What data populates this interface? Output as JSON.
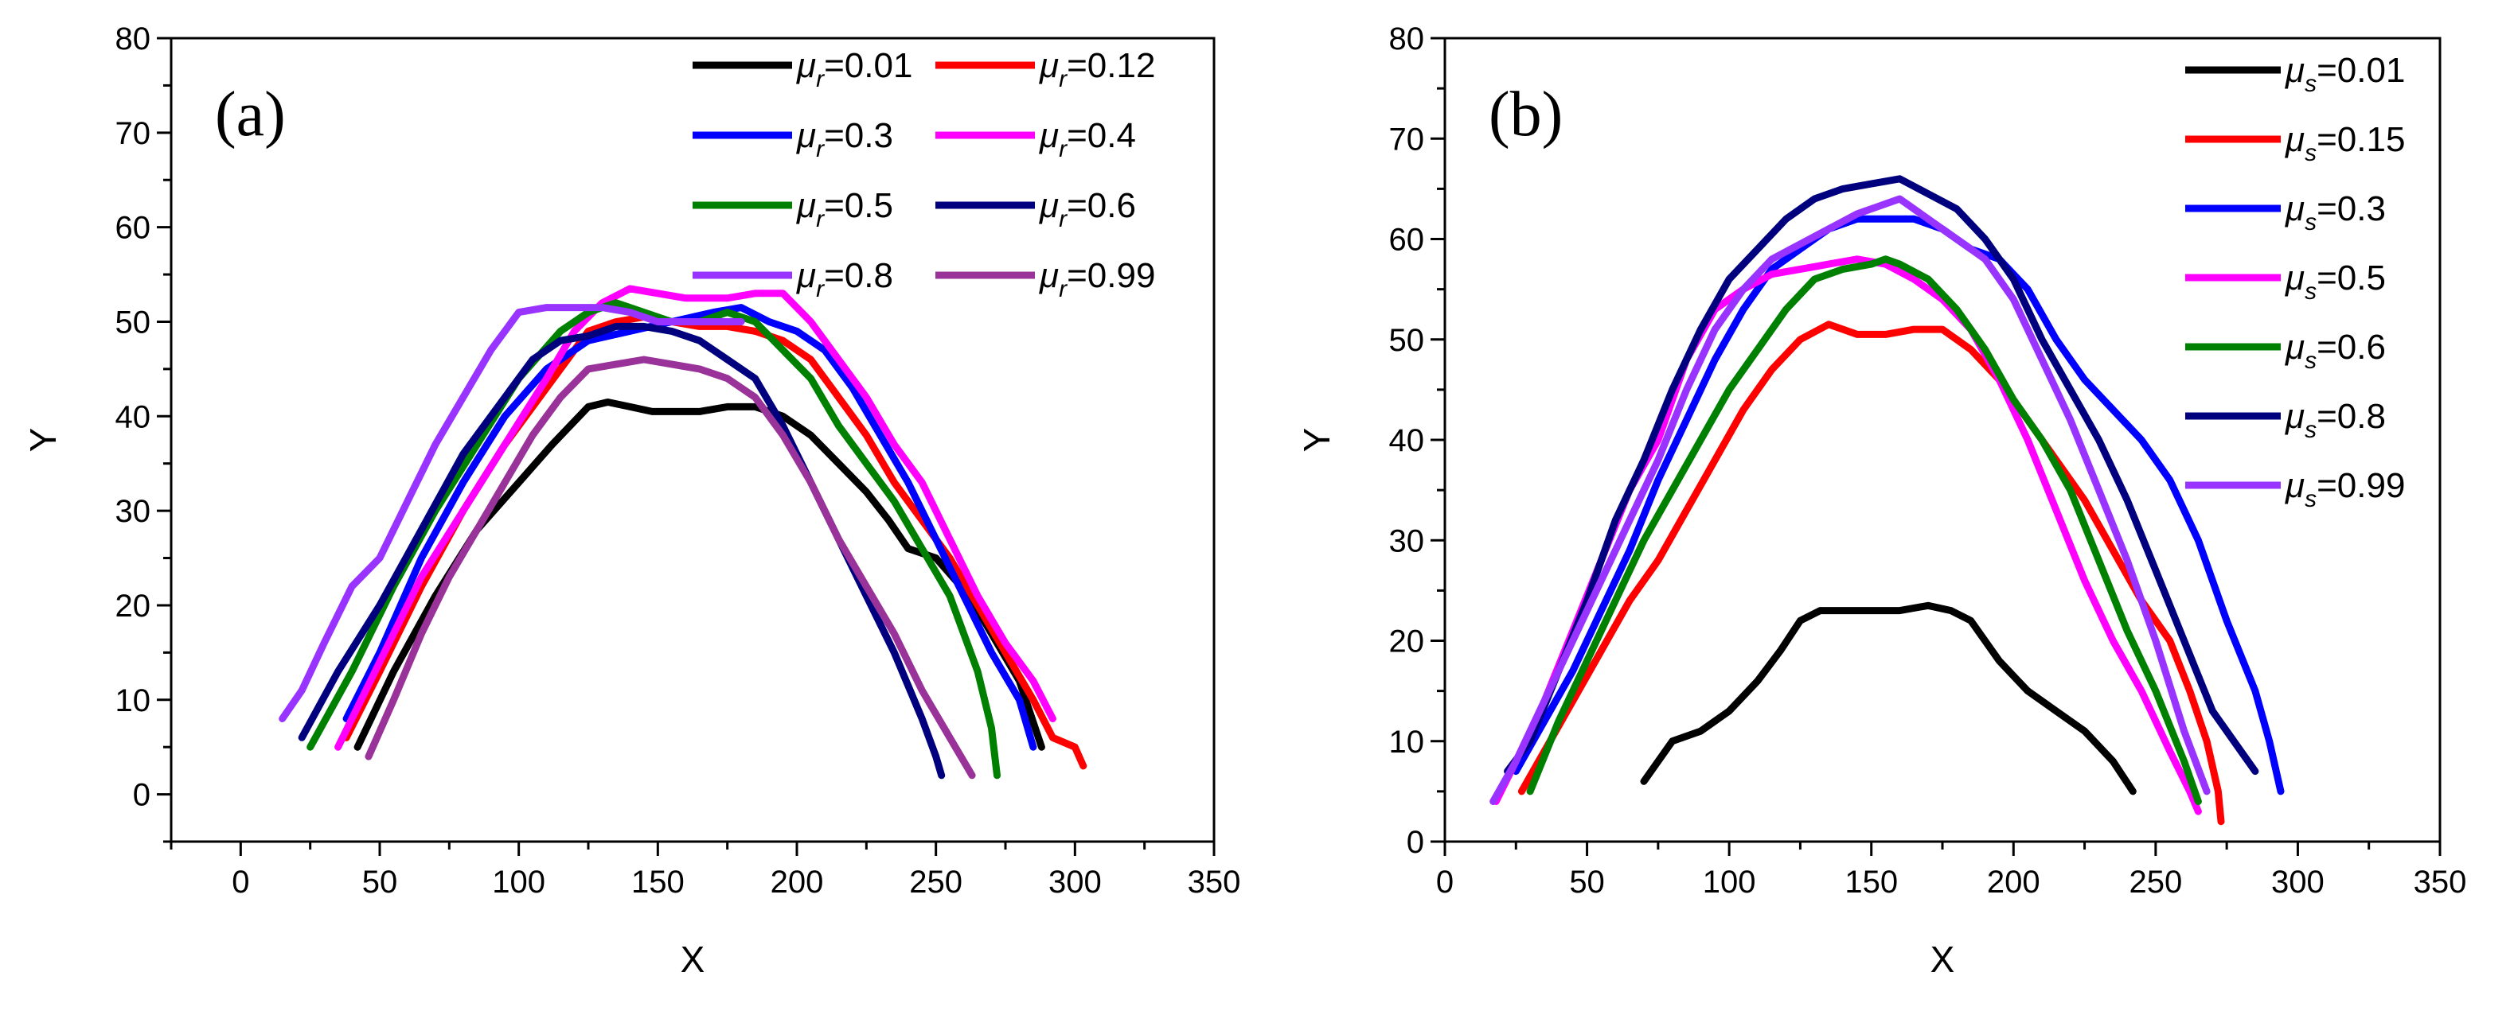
{
  "chart_data": [
    {
      "type": "line",
      "panel_label": "(a)",
      "xlabel": "X",
      "ylabel": "Y",
      "xlim": [
        -25,
        350
      ],
      "ylim": [
        -5,
        80
      ],
      "xticks": [
        0,
        50,
        100,
        150,
        200,
        250,
        300,
        350
      ],
      "yticks": [
        0,
        10,
        20,
        30,
        40,
        50,
        60,
        70,
        80
      ],
      "legend_position": "top-right",
      "legend_columns": 2,
      "series": [
        {
          "name": "μr=0.01",
          "symbol": "μ",
          "sub": "r",
          "value": "=0.01",
          "color": "#000000",
          "x": [
            42,
            55,
            70,
            85,
            100,
            112,
            125,
            132,
            140,
            148,
            156,
            165,
            175,
            185,
            195,
            205,
            215,
            225,
            233,
            240,
            250,
            262,
            272,
            280,
            288
          ],
          "y": [
            5,
            13,
            21,
            28,
            33,
            37,
            41,
            41.5,
            41,
            40.5,
            40.5,
            40.5,
            41,
            41,
            40,
            38,
            35,
            32,
            29,
            26,
            25,
            21,
            16,
            12,
            5
          ]
        },
        {
          "name": "μr=0.12",
          "symbol": "μ",
          "sub": "r",
          "value": "=0.12",
          "color": "#ff0000",
          "x": [
            38,
            50,
            65,
            80,
            95,
            110,
            125,
            135,
            145,
            155,
            165,
            175,
            185,
            195,
            205,
            215,
            225,
            235,
            245,
            255,
            265,
            275,
            285,
            292,
            300,
            303
          ],
          "y": [
            6,
            13,
            22,
            30,
            37,
            43,
            49,
            50,
            50.5,
            50,
            49.5,
            49.5,
            49,
            48,
            46,
            42,
            38,
            33,
            29,
            25,
            20,
            15,
            10,
            6,
            5,
            3
          ]
        },
        {
          "name": "μr=0.3",
          "symbol": "μ",
          "sub": "r",
          "value": "=0.3",
          "color": "#0000ff",
          "x": [
            38,
            50,
            65,
            80,
            95,
            110,
            125,
            140,
            155,
            170,
            180,
            190,
            200,
            210,
            220,
            230,
            240,
            250,
            260,
            270,
            280,
            285
          ],
          "y": [
            8,
            15,
            25,
            33,
            40,
            45,
            48,
            49,
            50,
            51,
            51.5,
            50,
            49,
            47,
            43,
            38,
            33,
            27,
            21,
            15,
            10,
            5
          ]
        },
        {
          "name": "μr=0.4",
          "symbol": "μ",
          "sub": "r",
          "value": "=0.4",
          "color": "#ff00ff",
          "x": [
            35,
            50,
            65,
            80,
            95,
            110,
            120,
            130,
            140,
            150,
            160,
            175,
            185,
            195,
            205,
            215,
            225,
            235,
            245,
            255,
            265,
            275,
            285,
            292
          ],
          "y": [
            5,
            14,
            23,
            30,
            37,
            44,
            49,
            52,
            53.5,
            53,
            52.5,
            52.5,
            53,
            53,
            50,
            46,
            42,
            37,
            33,
            27,
            21,
            16,
            12,
            8
          ]
        },
        {
          "name": "μr=0.5",
          "symbol": "μ",
          "sub": "r",
          "value": "=0.5",
          "color": "#008000",
          "x": [
            25,
            40,
            55,
            70,
            85,
            100,
            115,
            125,
            135,
            145,
            155,
            165,
            175,
            185,
            195,
            205,
            215,
            225,
            235,
            245,
            255,
            265,
            270,
            272
          ],
          "y": [
            5,
            13,
            22,
            30,
            37,
            44,
            49,
            51,
            52,
            51,
            50,
            50,
            51,
            50,
            47,
            44,
            39,
            35,
            31,
            26,
            21,
            13,
            7,
            2
          ]
        },
        {
          "name": "μr=0.6",
          "symbol": "μ",
          "sub": "r",
          "value": "=0.6",
          "color": "#00007f",
          "x": [
            22,
            35,
            50,
            65,
            80,
            95,
            105,
            115,
            125,
            135,
            145,
            155,
            165,
            175,
            185,
            195,
            205,
            215,
            225,
            235,
            245,
            250,
            252
          ],
          "y": [
            6,
            13,
            20,
            28,
            36,
            42,
            46,
            48,
            48.5,
            49.5,
            49.5,
            49,
            48,
            46,
            44,
            39,
            33,
            27,
            21,
            15,
            8,
            4,
            2
          ]
        },
        {
          "name": "μr=0.8",
          "symbol": "μ",
          "sub": "r",
          "value": "=0.8",
          "color": "#9933ff",
          "x": [
            15,
            22,
            30,
            40,
            50,
            60,
            70,
            80,
            90,
            100,
            110,
            120,
            130,
            140,
            150,
            160,
            170,
            180
          ],
          "y": [
            8,
            11,
            16,
            22,
            25,
            31,
            37,
            42,
            47,
            51,
            51.5,
            51.5,
            51.5,
            51,
            50,
            50,
            50,
            50
          ]
        },
        {
          "name": "μr=0.99",
          "symbol": "μ",
          "sub": "r",
          "value": "=0.99",
          "color": "#993399",
          "x": [
            46,
            55,
            65,
            75,
            85,
            95,
            105,
            115,
            125,
            135,
            145,
            155,
            165,
            175,
            185,
            195,
            205,
            215,
            225,
            235,
            245,
            255,
            263
          ],
          "y": [
            4,
            10,
            17,
            23,
            28,
            33,
            38,
            42,
            45,
            45.5,
            46,
            45.5,
            45,
            44,
            42,
            38,
            33,
            27,
            22,
            17,
            11,
            6,
            2
          ]
        }
      ]
    },
    {
      "type": "line",
      "panel_label": "(b)",
      "xlabel": "X",
      "ylabel": "Y",
      "xlim": [
        0,
        350
      ],
      "ylim": [
        0,
        80
      ],
      "xticks": [
        0,
        50,
        100,
        150,
        200,
        250,
        300,
        350
      ],
      "yticks": [
        0,
        10,
        20,
        30,
        40,
        50,
        60,
        70,
        80
      ],
      "legend_position": "top-right",
      "legend_columns": 1,
      "series": [
        {
          "name": "μs=0.01",
          "symbol": "μ",
          "sub": "s",
          "value": "=0.01",
          "color": "#000000",
          "x": [
            70,
            80,
            90,
            100,
            110,
            118,
            125,
            132,
            140,
            150,
            160,
            170,
            178,
            185,
            195,
            205,
            215,
            225,
            235,
            242
          ],
          "y": [
            6,
            10,
            11,
            13,
            16,
            19,
            22,
            23,
            23,
            23,
            23,
            23.5,
            23,
            22,
            18,
            15,
            13,
            11,
            8,
            5
          ]
        },
        {
          "name": "μs=0.15",
          "symbol": "μ",
          "sub": "s",
          "value": "=0.15",
          "color": "#ff0000",
          "x": [
            27,
            35,
            45,
            55,
            65,
            75,
            85,
            95,
            105,
            115,
            125,
            135,
            145,
            155,
            165,
            175,
            185,
            195,
            205,
            215,
            225,
            235,
            245,
            255,
            262,
            268,
            272,
            273
          ],
          "y": [
            5,
            9,
            14,
            19,
            24,
            28,
            33,
            38,
            43,
            47,
            50,
            51.5,
            50.5,
            50.5,
            51,
            51,
            49,
            46,
            42,
            38,
            34,
            29,
            24,
            20,
            15,
            10,
            5,
            2
          ]
        },
        {
          "name": "μs=0.3",
          "symbol": "μ",
          "sub": "s",
          "value": "=0.3",
          "color": "#0000ff",
          "x": [
            25,
            35,
            45,
            55,
            65,
            75,
            85,
            95,
            105,
            115,
            125,
            135,
            145,
            155,
            165,
            175,
            185,
            195,
            205,
            215,
            225,
            235,
            245,
            255,
            265,
            275,
            285,
            290,
            294
          ],
          "y": [
            7,
            12,
            17,
            23,
            29,
            36,
            42,
            48,
            53,
            57,
            59,
            61,
            62,
            62,
            62,
            61,
            59,
            58,
            55,
            50,
            46,
            43,
            40,
            36,
            30,
            22,
            15,
            10,
            5
          ]
        },
        {
          "name": "μs=0.5",
          "symbol": "μ",
          "sub": "s",
          "value": "=0.5",
          "color": "#ff00ff",
          "x": [
            18,
            25,
            35,
            45,
            55,
            65,
            75,
            85,
            95,
            105,
            115,
            125,
            135,
            145,
            155,
            165,
            175,
            185,
            195,
            205,
            215,
            225,
            235,
            245,
            255,
            262,
            265
          ],
          "y": [
            4,
            8,
            14,
            21,
            28,
            35,
            40,
            48,
            53,
            55,
            56.5,
            57,
            57.5,
            58,
            57.5,
            56,
            54,
            51,
            46,
            40,
            33,
            26,
            20,
            15,
            9,
            5,
            3
          ]
        },
        {
          "name": "μs=0.6",
          "symbol": "μ",
          "sub": "s",
          "value": "=0.6",
          "color": "#008000",
          "x": [
            30,
            40,
            50,
            60,
            70,
            80,
            90,
            100,
            110,
            120,
            130,
            140,
            150,
            155,
            160,
            170,
            180,
            190,
            200,
            210,
            220,
            230,
            240,
            250,
            260,
            265
          ],
          "y": [
            5,
            12,
            18,
            24,
            30,
            35,
            40,
            45,
            49,
            53,
            56,
            57,
            57.5,
            58,
            57.5,
            56,
            53,
            49,
            44,
            40,
            35,
            28,
            21,
            15,
            8,
            4
          ]
        },
        {
          "name": "μs=0.8",
          "symbol": "μ",
          "sub": "s",
          "value": "=0.8",
          "color": "#00007f",
          "x": [
            22,
            30,
            40,
            50,
            60,
            70,
            80,
            90,
            100,
            110,
            120,
            130,
            140,
            150,
            160,
            170,
            180,
            190,
            200,
            210,
            220,
            230,
            240,
            250,
            260,
            270,
            280,
            285
          ],
          "y": [
            7,
            10,
            17,
            24,
            32,
            38,
            45,
            51,
            56,
            59,
            62,
            64,
            65,
            65.5,
            66,
            64.5,
            63,
            60,
            56,
            50,
            45,
            40,
            34,
            27,
            20,
            13,
            9,
            7
          ]
        },
        {
          "name": "μs=0.99",
          "symbol": "μ",
          "sub": "s",
          "value": "=0.99",
          "color": "#9933ff",
          "x": [
            17,
            25,
            35,
            45,
            55,
            65,
            75,
            85,
            95,
            105,
            115,
            125,
            135,
            145,
            155,
            160,
            170,
            180,
            190,
            200,
            210,
            220,
            230,
            240,
            250,
            260,
            268
          ],
          "y": [
            4,
            8,
            14,
            20,
            26,
            32,
            38,
            45,
            51,
            55,
            58,
            59.5,
            61,
            62.5,
            63.5,
            64,
            62,
            60,
            58,
            54,
            48,
            42,
            35,
            28,
            20,
            11,
            5
          ]
        }
      ]
    }
  ]
}
